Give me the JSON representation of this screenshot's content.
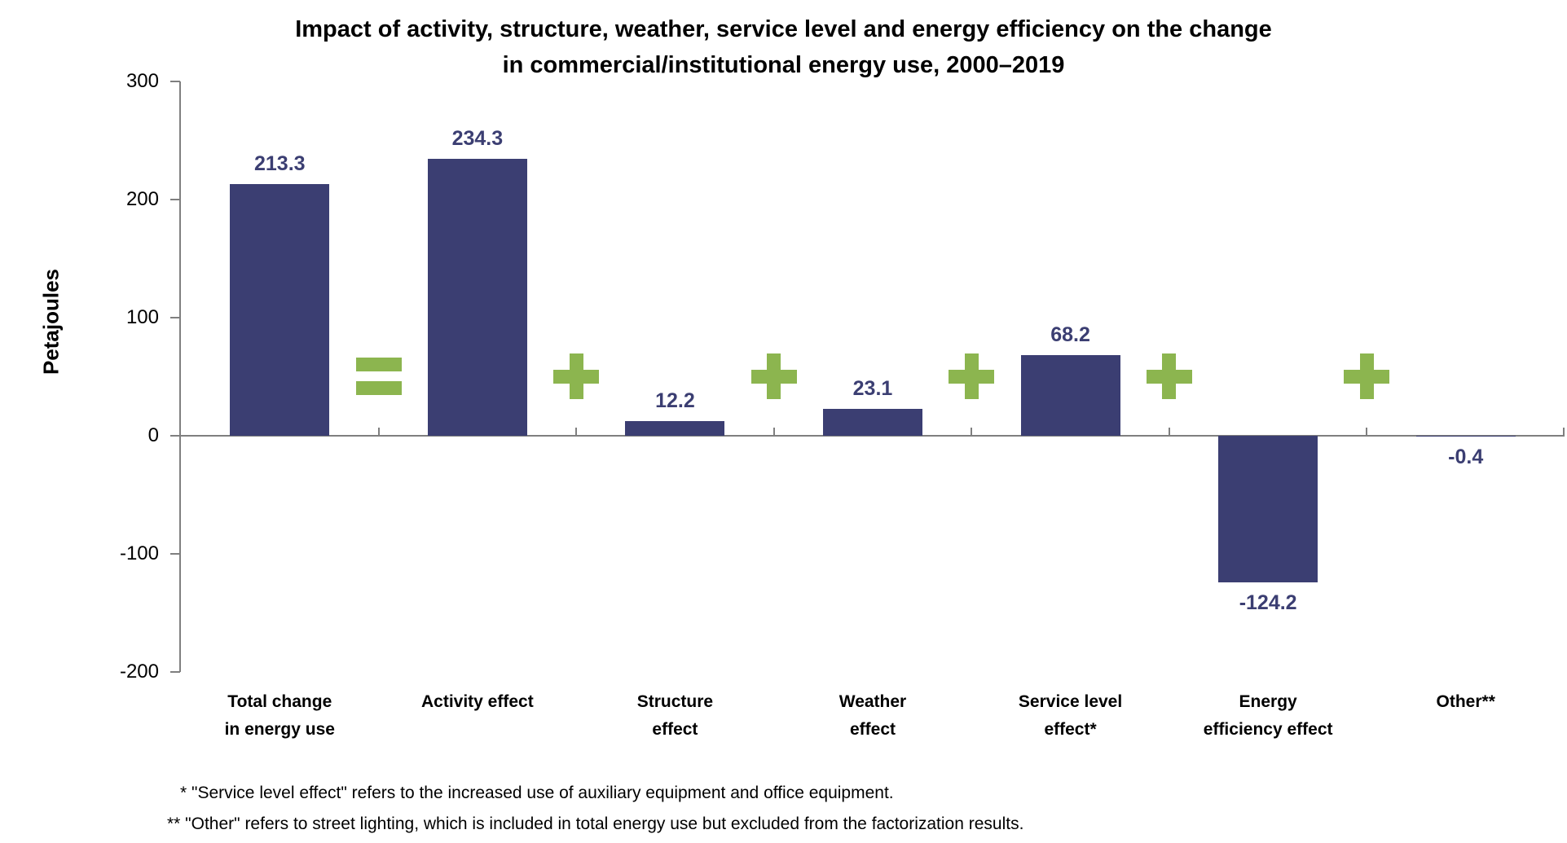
{
  "title": {
    "line1": "Impact of activity, structure, weather, service level and energy efficiency on the change",
    "line2": "in commercial/institutional energy use, 2000–2019"
  },
  "axes": {
    "y_title": "Petajoules"
  },
  "footnotes": [
    "* \"Service level effect\" refers to the increased use of auxiliary equipment and office equipment.",
    "** \"Other\" refers to street lighting, which is included in total energy use but excluded from the factorization results."
  ],
  "chart_data": {
    "type": "bar",
    "title": "Impact of activity, structure, weather, service level and energy efficiency on the change in commercial/institutional energy use, 2000–2019",
    "xlabel": "",
    "ylabel": "Petajoules",
    "ylim": [
      -200,
      300
    ],
    "yticks": [
      300,
      200,
      100,
      0,
      -100,
      -200
    ],
    "grid": false,
    "legend_position": "none",
    "categories": [
      "Total change\nin energy use",
      "Activity effect",
      "Structure\neffect",
      "Weather\neffect",
      "Service level\neffect*",
      "Energy\nefficiency effect",
      "Other**"
    ],
    "values": [
      213.3,
      234.3,
      12.2,
      23.1,
      68.2,
      -124.2,
      -0.4
    ],
    "value_labels": [
      "213.3",
      "234.3",
      "12.2",
      "23.1",
      "68.2",
      "-124.2",
      "-0.4"
    ],
    "operators": [
      "=",
      "+",
      "+",
      "+",
      "+",
      "+"
    ],
    "colors": {
      "bar": "#3B3E72",
      "value_label": "#3B3E72",
      "operator": "#8CB54F",
      "axis": "#7F7F7F",
      "text": "#000000"
    }
  }
}
